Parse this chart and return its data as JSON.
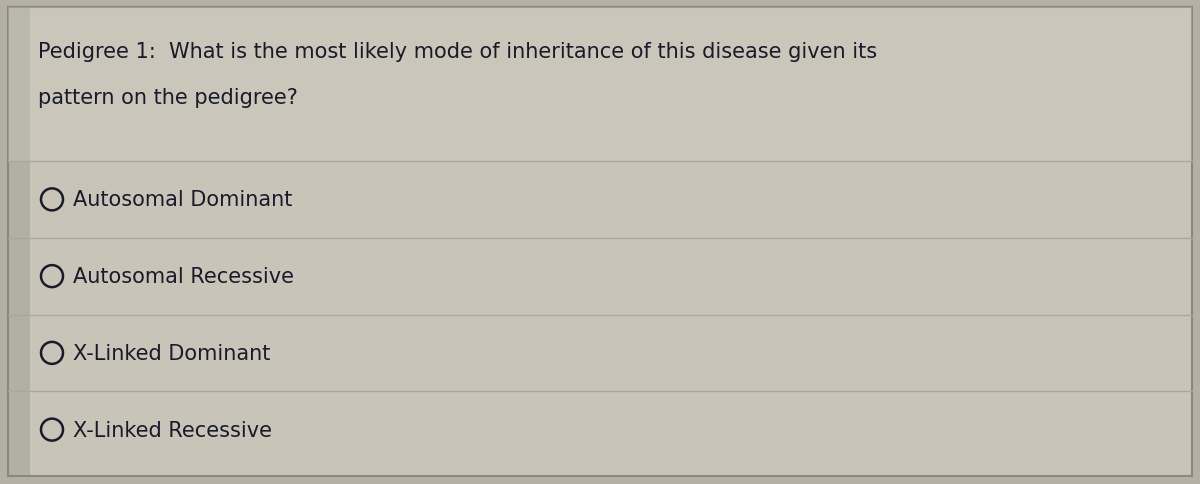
{
  "title_line1": "Pedigree 1:  What is the most likely mode of inheritance of this disease given its",
  "title_line2": "pattern on the pedigree?",
  "options": [
    "Autosomal Dominant",
    "Autosomal Recessive",
    "X-Linked Dominant",
    "X-Linked Recessive"
  ],
  "bg_color": "#b8b5a8",
  "box_bg": "#c8c5b8",
  "left_strip_color": "#8a8880",
  "text_color": "#1a1a2a",
  "line_color": "#aaa898",
  "border_color": "#888880",
  "title_fontsize": 15.0,
  "option_fontsize": 15.0,
  "fig_width": 12.0,
  "fig_height": 4.85,
  "noise_alpha": 0.08
}
